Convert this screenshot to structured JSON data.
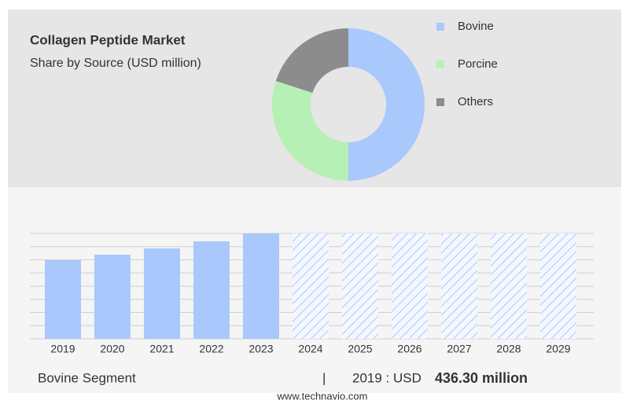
{
  "chart_data": [
    {
      "type": "donut",
      "title": "Collagen Peptide Market",
      "subtitle": "Share by Source (USD million)",
      "categories": [
        "Bovine",
        "Porcine",
        "Others"
      ],
      "values": [
        50,
        30,
        20
      ],
      "colors": [
        "#a9c8fb",
        "#b7f0b5",
        "#8c8c8c"
      ]
    },
    {
      "type": "bar",
      "categories": [
        "2019",
        "2020",
        "2021",
        "2022",
        "2023",
        "2024",
        "2025",
        "2026",
        "2027",
        "2028",
        "2029"
      ],
      "values": [
        436.3,
        467,
        502,
        541,
        585,
        null,
        null,
        null,
        null,
        null,
        null
      ],
      "value_labels": [
        "436.30 million",
        null,
        null,
        null,
        null,
        null,
        null,
        null,
        null,
        null,
        null
      ],
      "color": "#a9c8fb",
      "ylim": [
        0,
        585
      ],
      "yticks": [
        0,
        73,
        146,
        219,
        292,
        366,
        439,
        512,
        585
      ],
      "grid": true,
      "segment": "Bovine Segment",
      "highlight": "2019 : USD"
    }
  ],
  "source": "www.technavio.com"
}
